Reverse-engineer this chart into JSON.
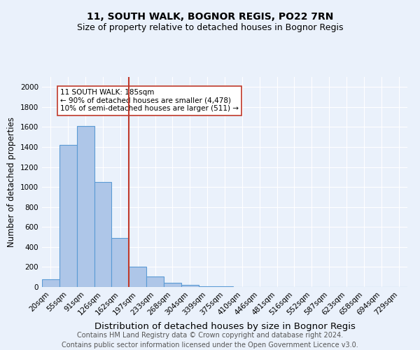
{
  "title": "11, SOUTH WALK, BOGNOR REGIS, PO22 7RN",
  "subtitle": "Size of property relative to detached houses in Bognor Regis",
  "xlabel": "Distribution of detached houses by size in Bognor Regis",
  "ylabel": "Number of detached properties",
  "bar_labels": [
    "20sqm",
    "55sqm",
    "91sqm",
    "126sqm",
    "162sqm",
    "197sqm",
    "233sqm",
    "268sqm",
    "304sqm",
    "339sqm",
    "375sqm",
    "410sqm",
    "446sqm",
    "481sqm",
    "516sqm",
    "552sqm",
    "587sqm",
    "623sqm",
    "658sqm",
    "694sqm",
    "729sqm"
  ],
  "bar_values": [
    80,
    1420,
    1610,
    1050,
    490,
    205,
    107,
    45,
    22,
    10,
    10,
    0,
    0,
    0,
    0,
    0,
    0,
    0,
    0,
    0,
    0
  ],
  "bar_color": "#aec6e8",
  "bar_edgecolor": "#5b9bd5",
  "highlight_line_color": "#c0392b",
  "annotation_text": "11 SOUTH WALK: 185sqm\n← 90% of detached houses are smaller (4,478)\n10% of semi-detached houses are larger (511) →",
  "ylim": [
    0,
    2100
  ],
  "yticks": [
    0,
    200,
    400,
    600,
    800,
    1000,
    1200,
    1400,
    1600,
    1800,
    2000
  ],
  "bg_color": "#eaf1fb",
  "plot_bg": "#eaf1fb",
  "footer_line1": "Contains HM Land Registry data © Crown copyright and database right 2024.",
  "footer_line2": "Contains public sector information licensed under the Open Government Licence v3.0.",
  "grid_color": "#ffffff",
  "title_fontsize": 10,
  "subtitle_fontsize": 9,
  "xlabel_fontsize": 9.5,
  "ylabel_fontsize": 8.5,
  "tick_fontsize": 7.5,
  "annotation_fontsize": 7.5,
  "footer_fontsize": 7.0
}
